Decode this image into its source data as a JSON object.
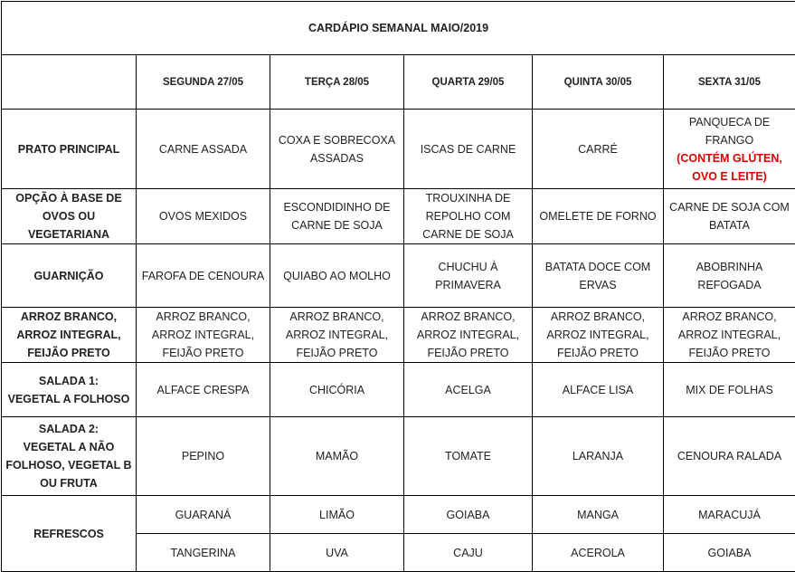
{
  "title": "CARDÁPIO SEMANAL MAIO/2019",
  "days": [
    "SEGUNDA   27/05",
    "TERÇA 28/05",
    "QUARTA 29/05",
    "QUINTA 30/05",
    "SEXTA 31/05"
  ],
  "rows": [
    {
      "label": "PRATO PRINCIPAL",
      "cells": [
        "CARNE ASSADA",
        "COXA E SOBRECOXA\nASSADAS",
        "ISCAS DE CARNE",
        "CARRÉ",
        "PANQUECA DE\nFRANGO"
      ],
      "note": "(CONTÉM GLÚTEN,\nOVO E LEITE)",
      "note_color": "#e00000"
    },
    {
      "label": "OPÇÃO À BASE DE\nOVOS OU\nVEGETARIANA",
      "cells": [
        "OVOS MEXIDOS",
        "ESCONDIDINHO DE\nCARNE DE SOJA",
        "TROUXINHA DE\nREPOLHO  COM\nCARNE DE SOJA",
        "OMELETE DE FORNO",
        "CARNE DE SOJA COM\nBATATA"
      ]
    },
    {
      "label": "GUARNIÇÃO",
      "cells": [
        "FAROFA DE CENOURA",
        "QUIABO AO MOLHO",
        "CHUCHU À\nPRIMAVERA",
        "BATATA DOCE COM\nERVAS",
        "ABOBRINHA\nREFOGADA"
      ]
    },
    {
      "label": "ARROZ BRANCO,\nARROZ INTEGRAL,\nFEIJÃO PRETO",
      "cells": [
        "ARROZ BRANCO,\nARROZ INTEGRAL,\nFEIJÃO PRETO",
        "ARROZ BRANCO,\nARROZ INTEGRAL,\nFEIJÃO PRETO",
        "ARROZ BRANCO,\nARROZ INTEGRAL,\nFEIJÃO PRETO",
        "ARROZ BRANCO,\nARROZ INTEGRAL,\nFEIJÃO PRETO",
        "ARROZ BRANCO,\nARROZ INTEGRAL,\nFEIJÃO PRETO"
      ]
    },
    {
      "label": "SALADA 1:\nVEGETAL A FOLHOSO",
      "cells": [
        "ALFACE CRESPA",
        "CHICÓRIA",
        "ACELGA",
        "ALFACE LISA",
        "MIX DE FOLHAS"
      ]
    },
    {
      "label": "SALADA 2:\nVEGETAL A NÃO\nFOLHOSO, VEGETAL B\nOU FRUTA",
      "cells": [
        "PEPINO",
        "MAMÃO",
        "TOMATE",
        "LARANJA",
        "CENOURA RALADA"
      ]
    }
  ],
  "refrescos": {
    "label": "REFRESCOS",
    "row1": [
      "GUARANÁ",
      "LIMÃO",
      "GOIABA",
      "MANGA",
      "MARACUJÁ"
    ],
    "row2": [
      "TANGERINA",
      "UVA",
      "CAJU",
      "ACEROLA",
      "GOIABA"
    ]
  }
}
